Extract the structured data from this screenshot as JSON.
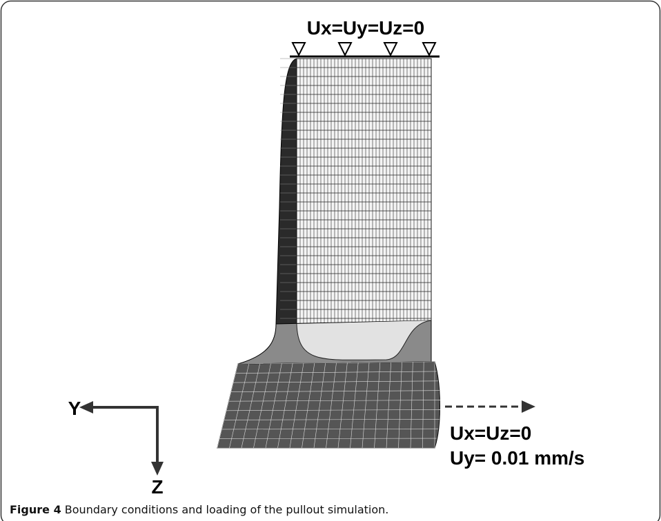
{
  "figure": {
    "labels": {
      "fixed": "Ux=Uy=Uz=0",
      "axis_y": "Y",
      "axis_z": "Z",
      "load_1": "Ux=Uz=0",
      "load_2": "Uy= 0.01 mm/s"
    },
    "caption": {
      "number": "Figure 4",
      "text": " Boundary conditions and loading of the pullout simulation."
    }
  }
}
